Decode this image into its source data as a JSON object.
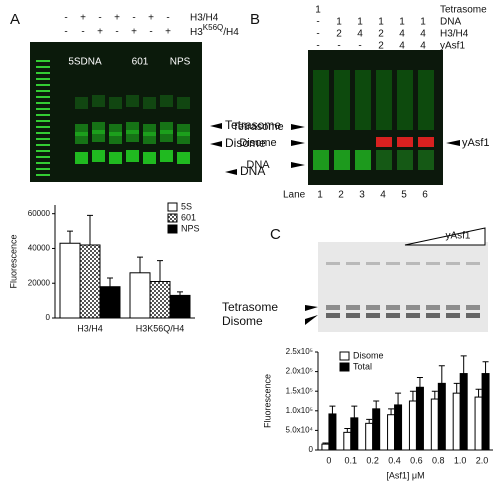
{
  "panel_a": {
    "letter": "A",
    "rows": [
      {
        "name": "H3/H4",
        "cells": [
          "-",
          "+",
          "-",
          "+",
          "-",
          "+",
          "-"
        ]
      },
      {
        "name_parts": [
          "H3",
          "K56Q",
          "/H4"
        ],
        "cells": [
          "-",
          "-",
          "+",
          "-",
          "+",
          "-",
          "+"
        ]
      }
    ],
    "groups": [
      "5SDNA",
      "601",
      "NPS"
    ],
    "arrows": [
      "Tetrasome",
      "Disome",
      "DNA"
    ]
  },
  "panel_b": {
    "letter": "B",
    "rows": [
      {
        "name": "Tetrasome",
        "cells": [
          "1",
          "",
          "",
          "",
          "",
          ""
        ]
      },
      {
        "name": "DNA",
        "cells": [
          "-",
          "1",
          "1",
          "1",
          "1",
          "1"
        ]
      },
      {
        "name": "H3/H4",
        "cells": [
          "-",
          "2",
          "4",
          "2",
          "4",
          "4"
        ]
      },
      {
        "name": "yAsf1",
        "cells": [
          "-",
          "-",
          "-",
          "2",
          "4",
          "4"
        ]
      }
    ],
    "lane_title": "Lane",
    "lanes": [
      "1",
      "2",
      "3",
      "4",
      "5",
      "6"
    ],
    "left_arrows": [
      "Tetrasome",
      "Disome",
      "DNA"
    ],
    "right_arrow": "yAsf1"
  },
  "panel_c": {
    "letter": "C",
    "titration": "yAsf1",
    "arrows": [
      "Tetrasome",
      "Disome"
    ]
  },
  "chart_data": [
    {
      "type": "bar",
      "y_label": "Fluorescence",
      "categories": [
        "H3/H4",
        "H3K56Q/H4"
      ],
      "ylim": [
        0,
        65000
      ],
      "yticks": [
        0,
        20000,
        40000,
        60000
      ],
      "series": [
        {
          "name": "5S",
          "color": "#ffffff",
          "values": [
            43000,
            26000
          ],
          "errors": [
            7000,
            9000
          ]
        },
        {
          "name": "601",
          "color": "#777777",
          "pattern": "checker",
          "values": [
            42000,
            21000
          ],
          "errors": [
            17000,
            12000
          ]
        },
        {
          "name": "NPS",
          "color": "#000000",
          "values": [
            18000,
            13000
          ],
          "errors": [
            5000,
            2000
          ]
        }
      ]
    },
    {
      "type": "bar",
      "y_label": "Fluorescence",
      "x_label": "[Asf1] μM",
      "categories": [
        "0",
        "0.1",
        "0.2",
        "0.4",
        "0.6",
        "0.8",
        "1.0",
        "2.0"
      ],
      "ylim": [
        0,
        250000
      ],
      "yticks": [
        0,
        {
          "value": 50000,
          "label": "5.0x10⁴"
        },
        {
          "value": 100000,
          "label": "1.0x10⁵"
        },
        {
          "value": 150000,
          "label": "1.5x10⁵"
        },
        {
          "value": 200000,
          "label": "2.0x10⁵"
        },
        {
          "value": 250000,
          "label": "2.5x10⁵"
        }
      ],
      "series": [
        {
          "name": "Disome",
          "color": "#ffffff",
          "values": [
            15000,
            45000,
            68000,
            90000,
            125000,
            130000,
            145000,
            135000
          ],
          "errors": [
            3000,
            10000,
            10000,
            15000,
            25000,
            20000,
            25000,
            20000
          ]
        },
        {
          "name": "Total",
          "color": "#000000",
          "values": [
            92000,
            82000,
            105000,
            115000,
            160000,
            170000,
            195000,
            195000
          ],
          "errors": [
            20000,
            30000,
            20000,
            30000,
            25000,
            45000,
            45000,
            30000
          ]
        }
      ]
    }
  ]
}
